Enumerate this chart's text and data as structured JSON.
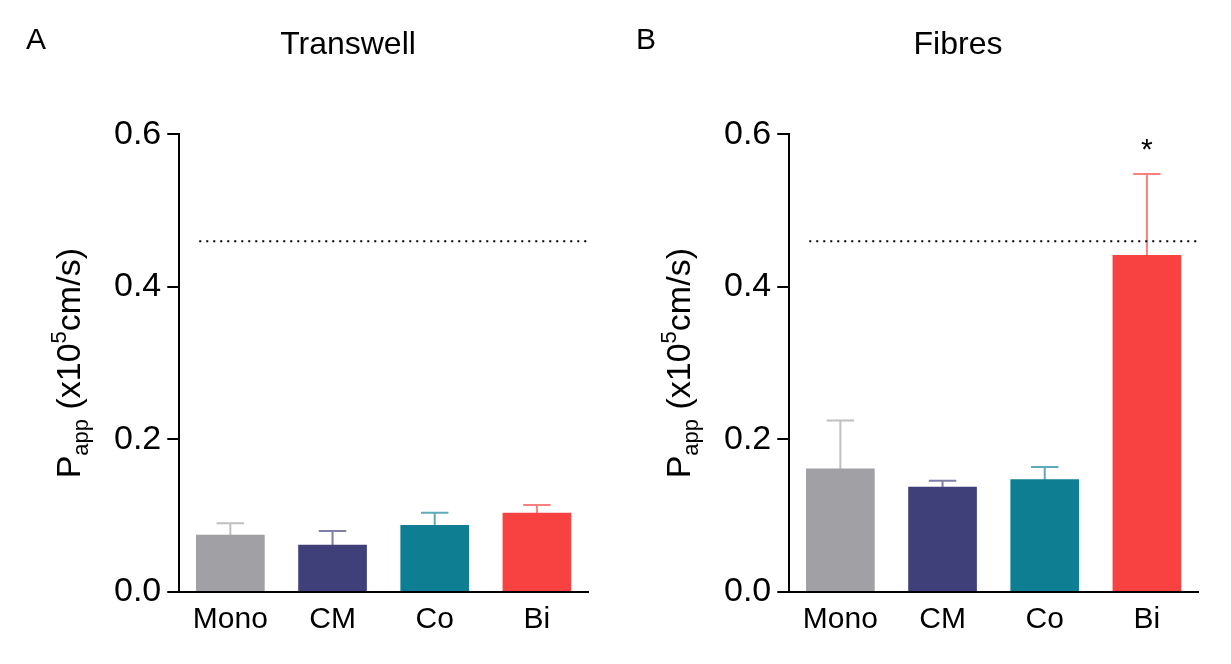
{
  "chart_data": [
    {
      "type": "bar",
      "title": "Transwell",
      "ylabel": "P$_{app}$ (x10$^{5}$cm/s)",
      "annotations": [
        "A"
      ],
      "categories": [
        "Mono",
        "CM",
        "Co",
        "Bi"
      ],
      "values": [
        0.075,
        0.062,
        0.088,
        0.104
      ],
      "errors": [
        0.015,
        0.018,
        0.016,
        0.01
      ],
      "colors": [
        "#a0a0a5",
        "#3f3f7a",
        "#0e7f93",
        "#f84141"
      ],
      "ylim": [
        0,
        0.6
      ],
      "yticks": [
        {
          "value": 0,
          "label": "0.0"
        },
        {
          "value": 0.2,
          "label": "0.2"
        },
        {
          "value": 0.4,
          "label": "0.4"
        },
        {
          "value": 0.6,
          "label": "0.6"
        }
      ],
      "ref_lines": [
        {
          "axis": "y",
          "value": 0.46,
          "line_style": "dotted",
          "color": "#000000"
        }
      ],
      "grid": false,
      "legend": false
    },
    {
      "type": "bar",
      "title": "Fibres",
      "ylabel": "P$_{app}$ (x10$^{5}$cm/s)",
      "annotations": [
        "B",
        {
          "text": "*",
          "x": "Bi",
          "y": 0.548
        }
      ],
      "categories": [
        "Mono",
        "CM",
        "Co",
        "Bi"
      ],
      "values": [
        0.162,
        0.138,
        0.148,
        0.442
      ],
      "errors": [
        0.063,
        0.008,
        0.016,
        0.106
      ],
      "colors": [
        "#a0a0a5",
        "#3f3f7a",
        "#0e7f93",
        "#f84141"
      ],
      "ylim": [
        0,
        0.6
      ],
      "yticks": [
        {
          "value": 0,
          "label": "0.0"
        },
        {
          "value": 0.2,
          "label": "0.2"
        },
        {
          "value": 0.4,
          "label": "0.4"
        },
        {
          "value": 0.6,
          "label": "0.6"
        }
      ],
      "ref_lines": [
        {
          "axis": "y",
          "value": 0.46,
          "line_style": "dotted",
          "color": "#000000"
        }
      ],
      "grid": false,
      "legend": false
    }
  ]
}
